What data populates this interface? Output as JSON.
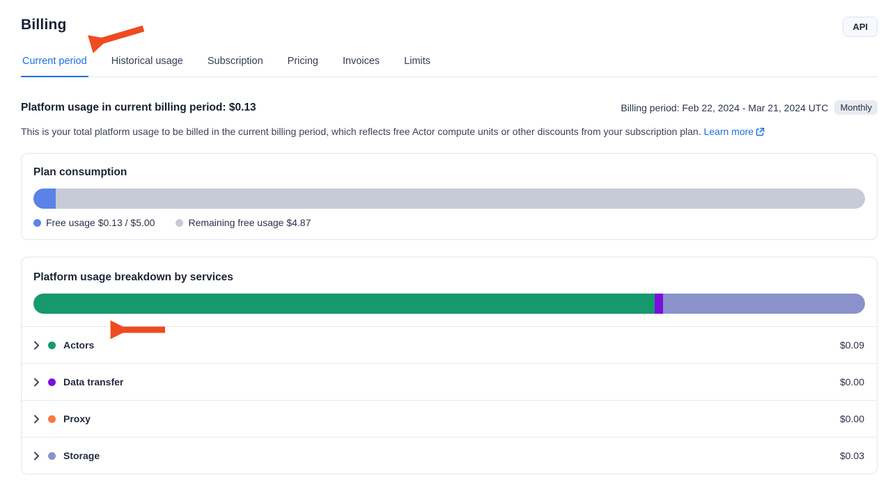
{
  "page": {
    "title": "Billing"
  },
  "header": {
    "api_button_label": "API"
  },
  "tabs": {
    "items": [
      {
        "label": "Current period",
        "active": true
      },
      {
        "label": "Historical usage",
        "active": false
      },
      {
        "label": "Subscription",
        "active": false
      },
      {
        "label": "Pricing",
        "active": false
      },
      {
        "label": "Invoices",
        "active": false
      },
      {
        "label": "Limits",
        "active": false
      }
    ]
  },
  "usage_summary": {
    "heading": "Platform usage in current billing period: $0.13",
    "billing_period": "Billing period: Feb 22, 2024 - Mar 21, 2024 UTC",
    "billing_cycle_badge": "Monthly",
    "description": "This is your total platform usage to be billed in the current billing period, which reflects free Actor compute units or other discounts from your subscription plan.",
    "learn_more_label": "Learn more"
  },
  "plan_consumption": {
    "title": "Plan consumption",
    "free_usage_used": "$0.13",
    "free_usage_total": "$5.00",
    "remaining_free_usage": "$4.87",
    "used_pct": 2.7,
    "used_color": "#5b82e9",
    "track_color": "#c7cbd6",
    "legend": [
      {
        "label": "Free usage $0.13 / $5.00",
        "color": "#5b82e9"
      },
      {
        "label": "Remaining free usage $4.87",
        "color": "#c7cbd6"
      }
    ]
  },
  "usage_breakdown": {
    "title": "Platform usage breakdown by services",
    "bar_segments": [
      {
        "name": "Actors",
        "pct": 74.7,
        "color": "#17996f"
      },
      {
        "name": "Data transfer",
        "pct": 1.0,
        "color": "#7c0fdc"
      },
      {
        "name": "Storage",
        "pct": 24.3,
        "color": "#8a92cc"
      }
    ],
    "rows": [
      {
        "label": "Actors",
        "value": "$0.09",
        "color": "#17996f"
      },
      {
        "label": "Data transfer",
        "value": "$0.00",
        "color": "#7c0fdc"
      },
      {
        "label": "Proxy",
        "value": "$0.00",
        "color": "#f8793f"
      },
      {
        "label": "Storage",
        "value": "$0.03",
        "color": "#8a92cc"
      }
    ]
  },
  "colors": {
    "accent_blue": "#1a6fe5",
    "annotation_arrow": "#f04a22",
    "card_border": "#e2e5f0"
  }
}
